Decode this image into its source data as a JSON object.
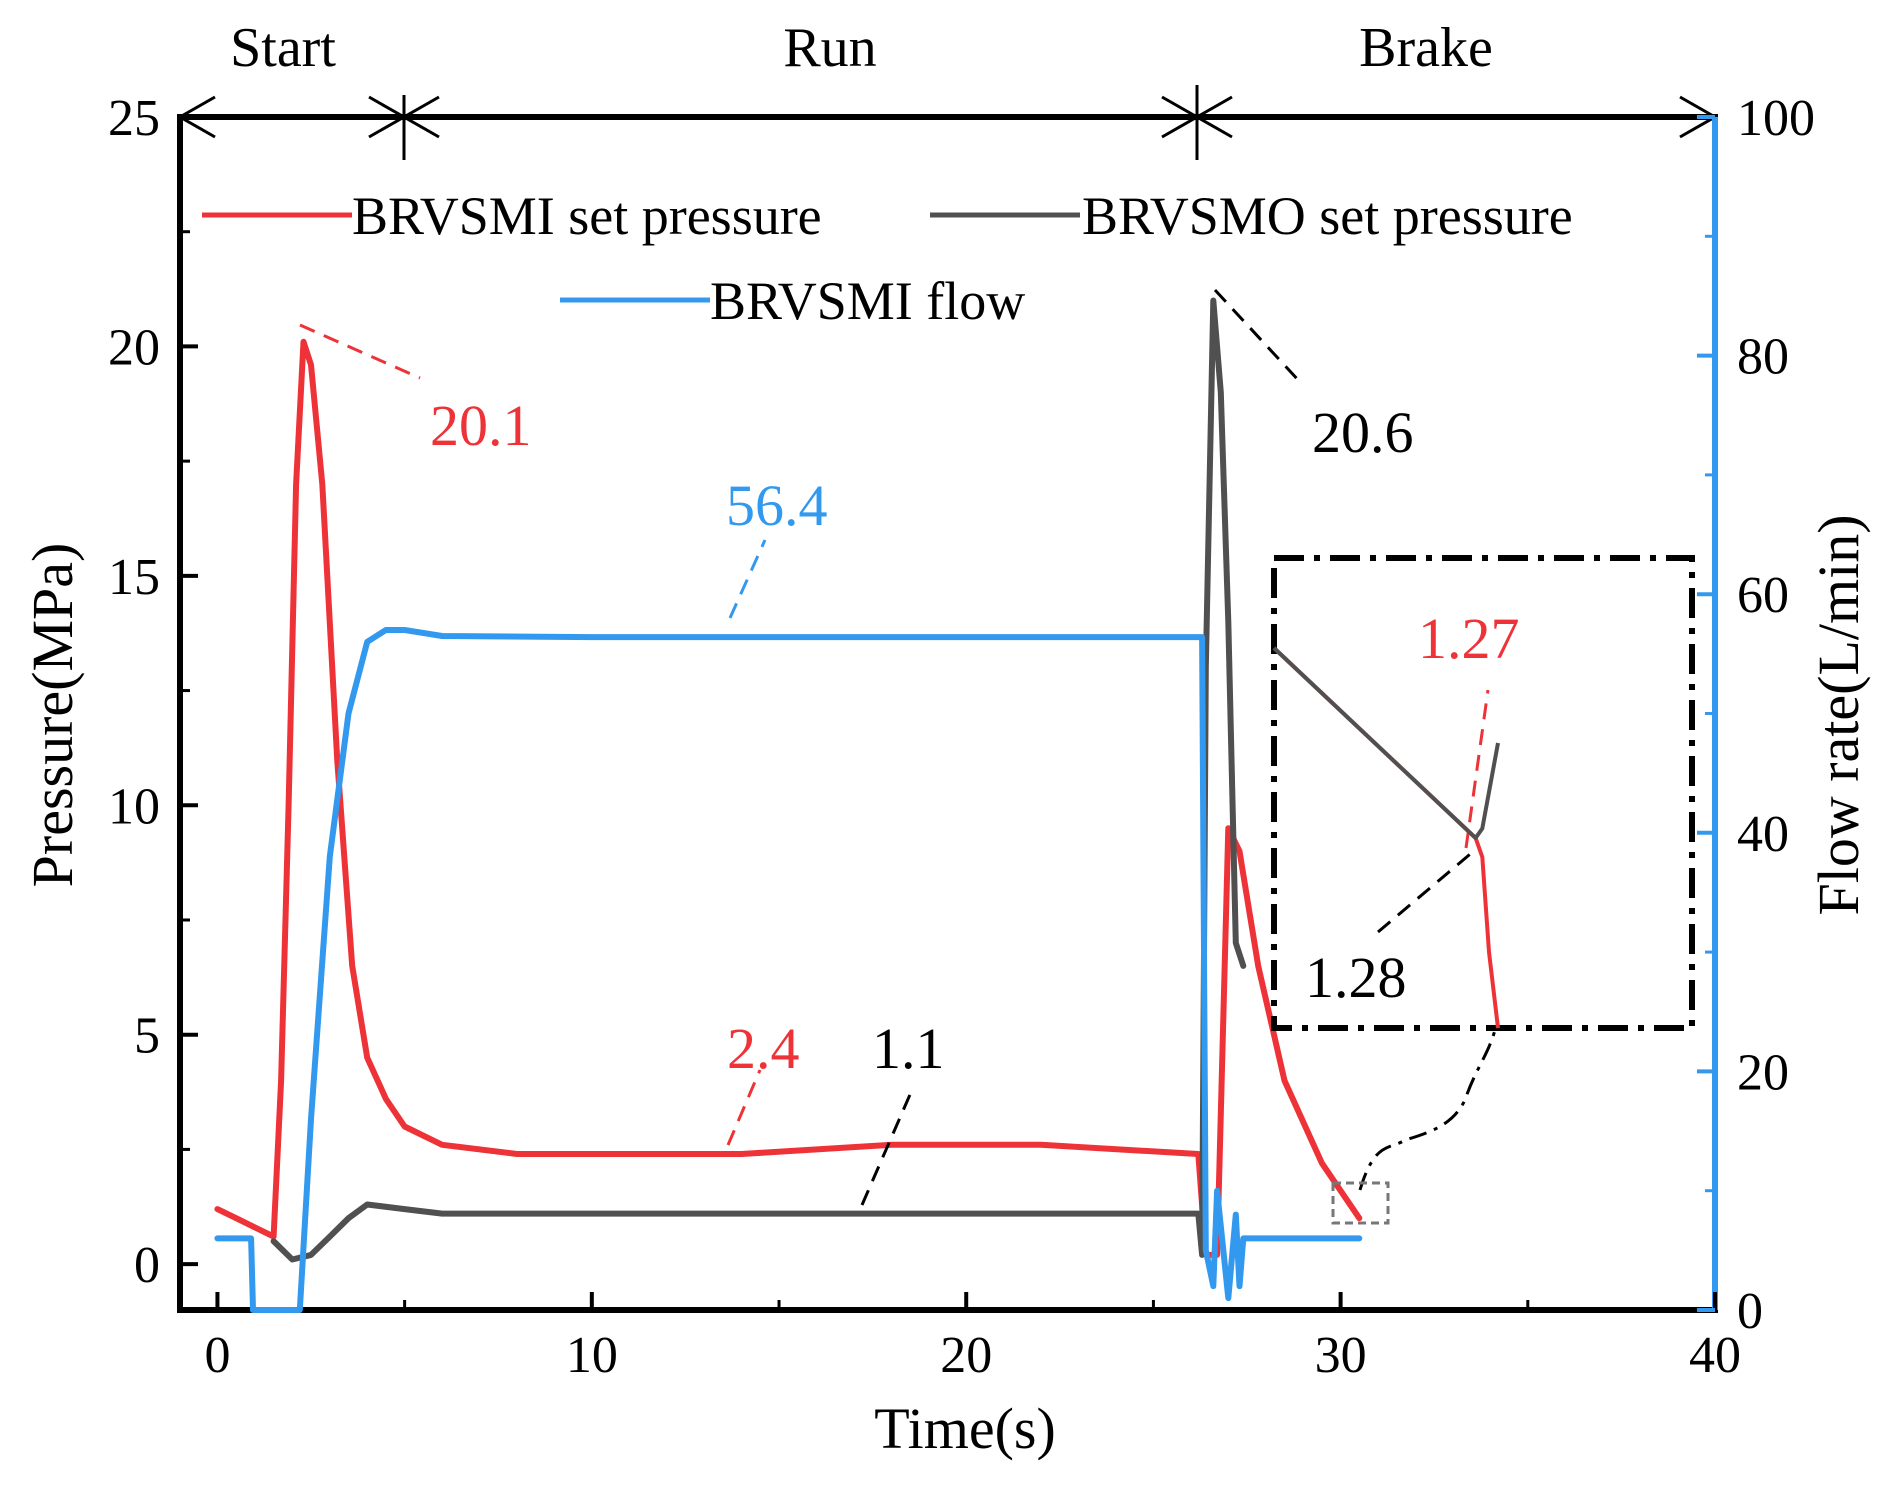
{
  "chart_data": {
    "type": "line",
    "xlabel": "Time(s)",
    "ylabel_left": "Pressure(MPa)",
    "ylabel_right": "Flow rate(L/min)",
    "xlim": [
      -1,
      40
    ],
    "ylim_left": [
      -1,
      25
    ],
    "ylim_right": [
      0,
      100
    ],
    "x_ticks": [
      "0",
      "10",
      "20",
      "30",
      "40"
    ],
    "y_left_ticks": [
      "0",
      "5",
      "10",
      "15",
      "20",
      "25"
    ],
    "y_right_ticks": [
      "0",
      "20",
      "40",
      "60",
      "80",
      "100"
    ],
    "phases": [
      {
        "label": "Start",
        "from": -1,
        "to": 4
      },
      {
        "label": "Run",
        "from": 4,
        "to": 26.3
      },
      {
        "label": "Brake",
        "from": 26.3,
        "to": 40
      }
    ],
    "legend": [
      {
        "name": "BRVSMI set pressure",
        "color": "#ee3338"
      },
      {
        "name": "BRVSMO set pressure",
        "color": "#505050"
      },
      {
        "name": "BRVSMI flow",
        "color": "#3399ee"
      }
    ],
    "series": [
      {
        "name": "BRVSMI set pressure",
        "axis": "left",
        "color": "#ee3338",
        "x": [
          0,
          0.5,
          1.0,
          1.5,
          1.7,
          1.9,
          2.1,
          2.3,
          2.5,
          2.8,
          3.2,
          3.6,
          4.0,
          4.5,
          5.0,
          6.0,
          8.0,
          10.0,
          14.0,
          18.0,
          22.0,
          26.2,
          26.4,
          26.7,
          27.0,
          27.3,
          27.8,
          28.5,
          29.5,
          30.5
        ],
        "y": [
          1.2,
          1.0,
          0.8,
          0.6,
          4.0,
          10.0,
          17.0,
          20.1,
          19.6,
          17.0,
          11.0,
          6.5,
          4.5,
          3.6,
          3.0,
          2.6,
          2.4,
          2.4,
          2.4,
          2.6,
          2.6,
          2.4,
          0.2,
          0.2,
          9.5,
          9.0,
          6.5,
          4.0,
          2.2,
          1.0
        ]
      },
      {
        "name": "BRVSMO set pressure",
        "axis": "left",
        "color": "#505050",
        "x": [
          1.5,
          2.0,
          2.5,
          3.0,
          3.5,
          4.0,
          5.0,
          6.0,
          8.0,
          12.0,
          16.0,
          20.0,
          24.0,
          26.2,
          26.3,
          26.4,
          26.6,
          26.8,
          27.0,
          27.2,
          27.4
        ],
        "y": [
          0.5,
          0.1,
          0.2,
          0.6,
          1.0,
          1.3,
          1.2,
          1.1,
          1.1,
          1.1,
          1.1,
          1.1,
          1.1,
          1.1,
          0.2,
          13.0,
          21.0,
          19.0,
          14.0,
          7.0,
          6.5
        ]
      },
      {
        "name": "BRVSMI flow",
        "axis": "right",
        "color": "#3399ee",
        "x": [
          0,
          0.9,
          0.95,
          2.2,
          2.5,
          3.0,
          3.5,
          4.0,
          4.5,
          5.0,
          6.0,
          10.0,
          14.0,
          18.0,
          22.0,
          26.3,
          26.4,
          26.6,
          26.7,
          27.0,
          27.2,
          27.3,
          27.4,
          30.5
        ],
        "y": [
          6,
          6,
          0,
          0,
          16,
          38,
          50,
          56,
          57,
          57,
          56.5,
          56.4,
          56.4,
          56.4,
          56.4,
          56.4,
          5,
          2,
          10,
          1,
          8,
          2,
          6,
          6
        ]
      }
    ],
    "inset": {
      "description": "zoomed view",
      "series": [
        {
          "name": "BRVSMI set pressure",
          "color": "#ee3338",
          "x": [
            0,
            0.9,
            0.93,
            0.96,
            1.0
          ],
          "y": [
            1.0,
            0.0,
            -0.1,
            -0.6,
            -1.0
          ]
        },
        {
          "name": "BRVSMO set pressure",
          "color": "#505050",
          "x": [
            0,
            0.9,
            0.93,
            1.0
          ],
          "y": [
            1.0,
            0.0,
            0.05,
            0.5
          ]
        }
      ]
    },
    "annotations": [
      {
        "text": "20.1",
        "color": "#ee3338"
      },
      {
        "text": "20.6",
        "color": "#000000"
      },
      {
        "text": "56.4",
        "color": "#3399ee"
      },
      {
        "text": "2.4",
        "color": "#ee3338"
      },
      {
        "text": "1.1",
        "color": "#000000"
      },
      {
        "text": "1.27",
        "color": "#ee3338"
      },
      {
        "text": "1.28",
        "color": "#000000"
      }
    ]
  }
}
